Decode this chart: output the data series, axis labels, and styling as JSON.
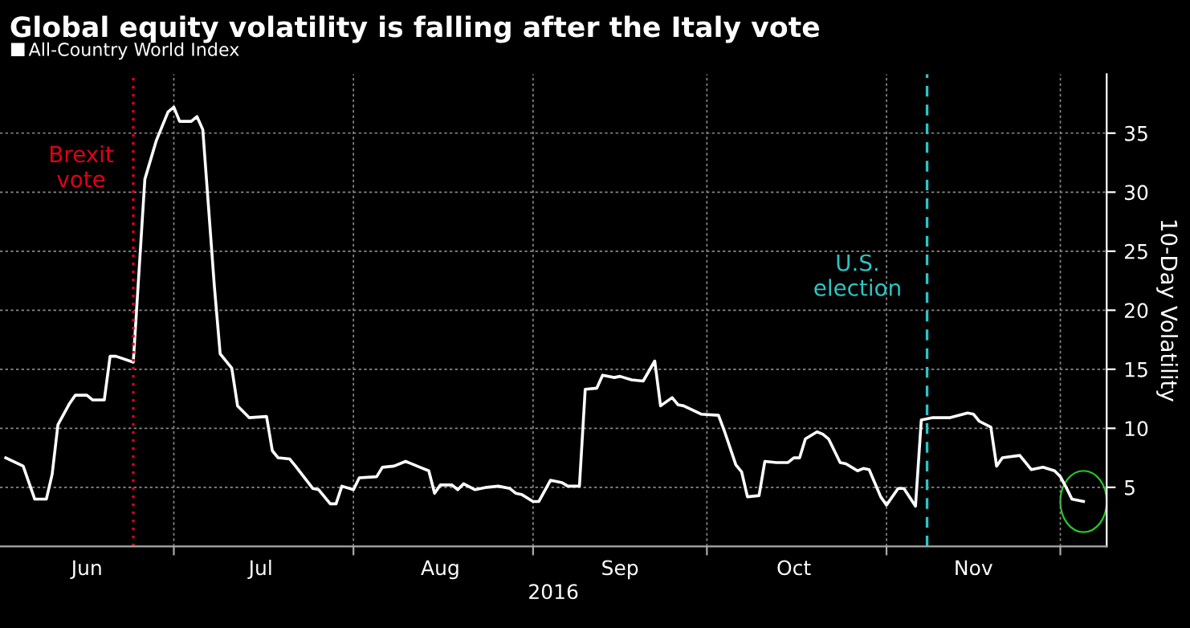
{
  "chart_data": {
    "type": "line",
    "title": "Global equity volatility is falling after the Italy vote",
    "xlabel": "2016",
    "ylabel": "10-Day Volatility",
    "x": [
      "2016-06-02",
      "2016-06-05",
      "2016-06-07",
      "2016-06-09",
      "2016-06-10",
      "2016-06-11",
      "2016-06-13",
      "2016-06-14",
      "2016-06-16",
      "2016-06-17",
      "2016-06-19",
      "2016-06-20",
      "2016-06-21",
      "2016-06-24",
      "2016-06-26",
      "2016-06-28",
      "2016-06-30",
      "2016-07-01",
      "2016-07-02",
      "2016-07-04",
      "2016-07-05",
      "2016-07-06",
      "2016-07-08",
      "2016-07-09",
      "2016-07-11",
      "2016-07-12",
      "2016-07-14",
      "2016-07-17",
      "2016-07-18",
      "2016-07-19",
      "2016-07-21",
      "2016-07-22",
      "2016-07-25",
      "2016-07-26",
      "2016-07-28",
      "2016-07-29",
      "2016-07-30",
      "2016-08-01",
      "2016-08-02",
      "2016-08-05",
      "2016-08-06",
      "2016-08-08",
      "2016-08-10",
      "2016-08-13",
      "2016-08-14",
      "2016-08-15",
      "2016-08-16",
      "2016-08-18",
      "2016-08-19",
      "2016-08-20",
      "2016-08-22",
      "2016-08-24",
      "2016-08-26",
      "2016-08-28",
      "2016-08-29",
      "2016-08-30",
      "2016-09-01",
      "2016-09-02",
      "2016-09-04",
      "2016-09-06",
      "2016-09-07",
      "2016-09-09",
      "2016-09-10",
      "2016-09-12",
      "2016-09-13",
      "2016-09-15",
      "2016-09-16",
      "2016-09-18",
      "2016-09-20",
      "2016-09-22",
      "2016-09-23",
      "2016-09-25",
      "2016-09-26",
      "2016-09-27",
      "2016-09-30",
      "2016-10-03",
      "2016-10-04",
      "2016-10-06",
      "2016-10-07",
      "2016-10-08",
      "2016-10-10",
      "2016-10-11",
      "2016-10-13",
      "2016-10-15",
      "2016-10-16",
      "2016-10-17",
      "2016-10-18",
      "2016-10-20",
      "2016-10-21",
      "2016-10-22",
      "2016-10-24",
      "2016-10-25",
      "2016-10-27",
      "2016-10-28",
      "2016-10-29",
      "2016-10-31",
      "2016-11-01",
      "2016-11-03",
      "2016-11-04",
      "2016-11-06",
      "2016-11-07",
      "2016-11-09",
      "2016-11-12",
      "2016-11-15",
      "2016-11-16",
      "2016-11-17",
      "2016-11-19",
      "2016-11-20",
      "2016-11-21",
      "2016-11-24",
      "2016-11-25",
      "2016-11-26",
      "2016-11-28",
      "2016-11-30",
      "2016-12-01",
      "2016-12-02",
      "2016-12-03",
      "2016-12-05"
    ],
    "series": [
      {
        "name": "All-Country World Index",
        "color": "#ffffff",
        "values": [
          7.5,
          6.8,
          4.0,
          4.0,
          6.1,
          10.3,
          12.1,
          12.8,
          12.8,
          12.4,
          12.4,
          16.1,
          16.1,
          15.6,
          31.1,
          34.4,
          36.8,
          37.2,
          36.0,
          36.0,
          36.4,
          35.3,
          22.0,
          16.3,
          15.1,
          11.9,
          10.9,
          11.0,
          8.1,
          7.5,
          7.4,
          6.8,
          4.9,
          4.8,
          3.6,
          3.6,
          5.1,
          4.8,
          5.8,
          5.9,
          6.7,
          6.8,
          7.2,
          6.6,
          6.4,
          4.5,
          5.2,
          5.2,
          4.8,
          5.3,
          4.8,
          5.0,
          5.1,
          4.9,
          4.5,
          4.4,
          3.8,
          3.8,
          5.6,
          5.4,
          5.1,
          5.1,
          13.3,
          13.4,
          14.5,
          14.3,
          14.4,
          14.1,
          14.0,
          15.7,
          11.9,
          12.6,
          12.0,
          11.9,
          11.2,
          11.1,
          9.8,
          6.9,
          6.3,
          4.2,
          4.3,
          7.2,
          7.1,
          7.1,
          7.5,
          7.5,
          9.1,
          9.7,
          9.5,
          9.1,
          7.1,
          7.0,
          6.4,
          6.6,
          6.5,
          4.2,
          3.5,
          4.9,
          4.9,
          3.4,
          10.7,
          10.9,
          10.9,
          11.3,
          11.2,
          10.6,
          10.1,
          6.8,
          7.5,
          7.7,
          7.1,
          6.5,
          6.7,
          6.4,
          5.9,
          5.0,
          4.0,
          3.8
        ]
      }
    ],
    "xlim": [
      "2016-06-01",
      "2016-12-09"
    ],
    "xticks": [
      {
        "value": "2016-06-16",
        "label": "Jun"
      },
      {
        "value": "2016-07-01",
        "label": null
      },
      {
        "value": "2016-07-16",
        "label": "Jul"
      },
      {
        "value": "2016-08-01",
        "label": null
      },
      {
        "value": "2016-08-16",
        "label": "Aug"
      },
      {
        "value": "2016-09-01",
        "label": null
      },
      {
        "value": "2016-09-16",
        "label": "Sep"
      },
      {
        "value": "2016-10-01",
        "label": null
      },
      {
        "value": "2016-10-16",
        "label": "Oct"
      },
      {
        "value": "2016-11-01",
        "label": null
      },
      {
        "value": "2016-11-16",
        "label": "Nov"
      },
      {
        "value": "2016-12-01",
        "label": null
      }
    ],
    "ylim": [
      0,
      40
    ],
    "yticks": [
      5,
      10,
      15,
      20,
      25,
      30,
      35
    ],
    "ref_lines": [
      {
        "axis": "x",
        "value": "2016-06-24",
        "label": "Brexit\nvote",
        "color": "#e0001b",
        "line_style": "dotted"
      },
      {
        "axis": "x",
        "value": "2016-11-08",
        "label": "U.S.\nelection",
        "color": "#2ec4c4",
        "line_style": "dashed"
      }
    ],
    "grid": true,
    "legend": "top left",
    "marker": "none",
    "line_style": "solid"
  }
}
